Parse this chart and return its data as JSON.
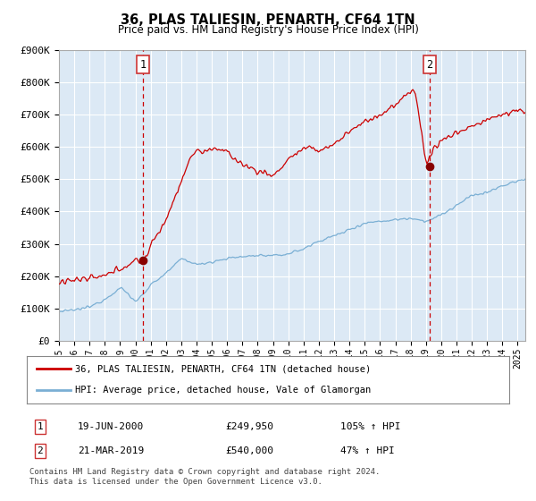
{
  "title": "36, PLAS TALIESIN, PENARTH, CF64 1TN",
  "subtitle": "Price paid vs. HM Land Registry's House Price Index (HPI)",
  "background_color": "#ffffff",
  "plot_bg_color": "#dce9f5",
  "legend_line1": "36, PLAS TALIESIN, PENARTH, CF64 1TN (detached house)",
  "legend_line2": "HPI: Average price, detached house, Vale of Glamorgan",
  "annotation1_label": "1",
  "annotation1_date": "19-JUN-2000",
  "annotation1_price": "£249,950",
  "annotation1_hpi": "105% ↑ HPI",
  "annotation2_label": "2",
  "annotation2_date": "21-MAR-2019",
  "annotation2_price": "£540,000",
  "annotation2_hpi": "47% ↑ HPI",
  "footer_line1": "Contains HM Land Registry data © Crown copyright and database right 2024.",
  "footer_line2": "This data is licensed under the Open Government Licence v3.0.",
  "ylim": [
    0,
    900000
  ],
  "yticks": [
    0,
    100000,
    200000,
    300000,
    400000,
    500000,
    600000,
    700000,
    800000,
    900000
  ],
  "ytick_labels": [
    "£0",
    "£100K",
    "£200K",
    "£300K",
    "£400K",
    "£500K",
    "£600K",
    "£700K",
    "£800K",
    "£900K"
  ],
  "red_color": "#cc0000",
  "blue_color": "#7aafd4",
  "dot_color": "#880000",
  "vline_color": "#cc0000",
  "grid_color": "#ffffff",
  "border_color": "#aaaaaa",
  "ann_box_edge": "#cc3333"
}
